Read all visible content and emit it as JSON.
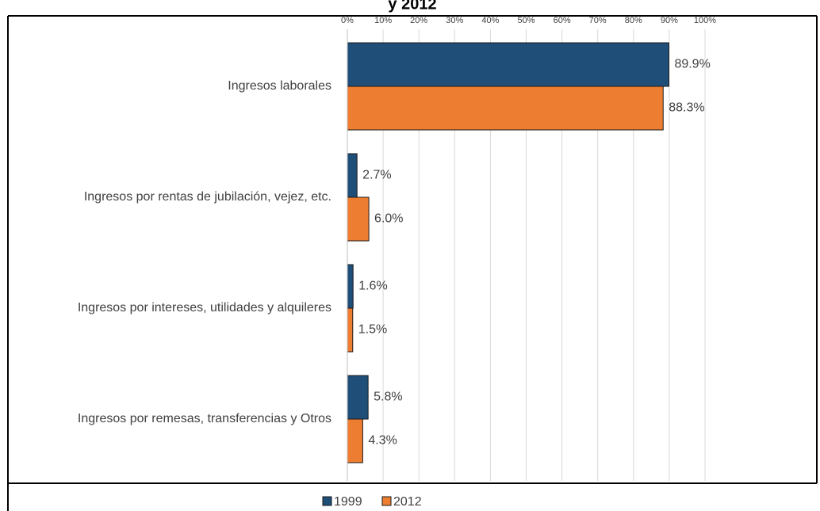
{
  "chart_data": {
    "type": "bar",
    "orientation": "horizontal",
    "title": "y 2012",
    "categories": [
      "Ingresos laborales",
      "Ingresos por rentas de jubilación, vejez,  etc.",
      "Ingresos por intereses, utilidades y alquileres",
      "Ingresos por remesas, transferencias y Otros"
    ],
    "series": [
      {
        "name": "1999",
        "color": "#1f4e79",
        "values": [
          89.9,
          2.7,
          1.6,
          5.8
        ],
        "value_labels": [
          "89.9%",
          "2.7%",
          "1.6%",
          "5.8%"
        ]
      },
      {
        "name": "2012",
        "color": "#ed7d31",
        "values": [
          88.3,
          6.0,
          1.5,
          4.3
        ],
        "value_labels": [
          "88.3%",
          "6.0%",
          "1.5%",
          "4.3%"
        ]
      }
    ],
    "xlim": [
      0,
      100
    ],
    "xticks": [
      {
        "value": 0,
        "label": "0%"
      },
      {
        "value": 10,
        "label": "10%"
      },
      {
        "value": 20,
        "label": "20%"
      },
      {
        "value": 30,
        "label": "30%"
      },
      {
        "value": 40,
        "label": "40%"
      },
      {
        "value": 50,
        "label": "50%"
      },
      {
        "value": 60,
        "label": "60%"
      },
      {
        "value": 70,
        "label": "70%"
      },
      {
        "value": 80,
        "label": "80%"
      },
      {
        "value": 90,
        "label": "90%"
      },
      {
        "value": 100,
        "label": "100%"
      }
    ],
    "grid": true,
    "legend": "bottom"
  }
}
